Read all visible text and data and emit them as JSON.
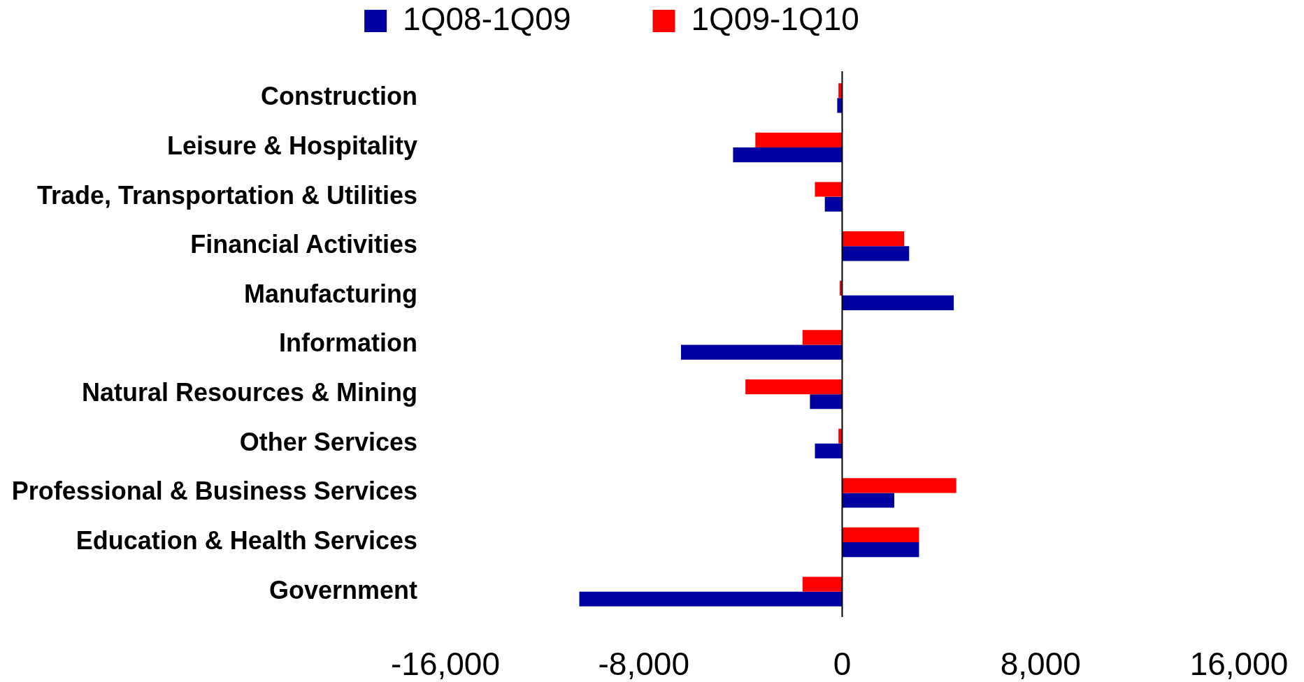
{
  "chart_data": {
    "type": "bar",
    "orientation": "horizontal",
    "categories": [
      "Construction",
      "Leisure & Hospitality",
      "Trade, Transportation & Utilities",
      "Financial Activities",
      "Manufacturing",
      "Information",
      "Natural Resources & Mining",
      "Other Services",
      "Professional & Business Services",
      "Education & Health Services",
      "Government"
    ],
    "series": [
      {
        "name": "1Q08-1Q09",
        "color": "#0000a0",
        "values": [
          -200,
          -4400,
          -700,
          2700,
          4500,
          -6500,
          -1300,
          -1100,
          2100,
          3100,
          -10600
        ]
      },
      {
        "name": "1Q09-1Q10",
        "color": "#ff0000",
        "values": [
          -150,
          -3500,
          -1100,
          2500,
          -100,
          -1600,
          -3900,
          -150,
          4600,
          3100,
          -1600
        ]
      }
    ],
    "xlim": [
      -16000,
      16000
    ],
    "xticks": [
      {
        "value": -16000,
        "label": "-16,000"
      },
      {
        "value": -8000,
        "label": "-8,000"
      },
      0,
      {
        "value": 8000,
        "label": "8,000"
      },
      {
        "value": 16000,
        "label": "16,000"
      }
    ],
    "legend": "top"
  }
}
